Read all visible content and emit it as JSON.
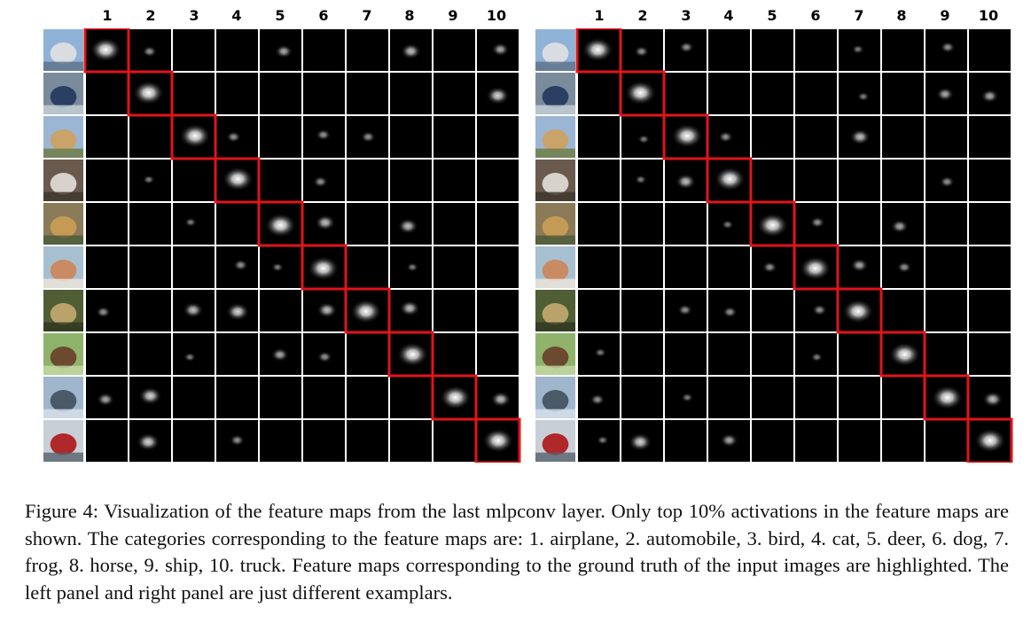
{
  "figure": {
    "column_numbers": [
      "1",
      "2",
      "3",
      "4",
      "5",
      "6",
      "7",
      "8",
      "9",
      "10"
    ],
    "highlight_color": "#e0141b",
    "panels": [
      {
        "name": "left",
        "rows": [
          {
            "input": "airplane",
            "blobs": [
              [
                1,
                0,
                9
              ],
              [
                2,
                0,
                3
              ],
              [
                5,
                0,
                4
              ],
              [
                8,
                0,
                5
              ],
              [
                10,
                0,
                4
              ]
            ]
          },
          {
            "input": "automobile",
            "blobs": [
              [
                2,
                0,
                9
              ],
              [
                10,
                0,
                6
              ]
            ]
          },
          {
            "input": "bird",
            "blobs": [
              [
                3,
                0,
                9
              ],
              [
                4,
                0,
                3
              ],
              [
                6,
                0,
                3
              ],
              [
                7,
                0,
                3
              ]
            ]
          },
          {
            "input": "cat",
            "blobs": [
              [
                4,
                0,
                9
              ],
              [
                2,
                0,
                2
              ],
              [
                6,
                0,
                3
              ]
            ]
          },
          {
            "input": "deer",
            "blobs": [
              [
                5,
                0,
                9
              ],
              [
                6,
                0,
                5
              ],
              [
                8,
                0,
                5
              ],
              [
                3,
                0,
                2
              ]
            ]
          },
          {
            "input": "dog",
            "blobs": [
              [
                6,
                0,
                9
              ],
              [
                4,
                0,
                3
              ],
              [
                5,
                0,
                2
              ],
              [
                8,
                0,
                2
              ]
            ]
          },
          {
            "input": "frog",
            "blobs": [
              [
                7,
                0,
                9
              ],
              [
                3,
                0,
                5
              ],
              [
                4,
                0,
                6
              ],
              [
                6,
                0,
                5
              ],
              [
                8,
                0,
                5
              ],
              [
                1,
                0,
                3
              ]
            ]
          },
          {
            "input": "horse",
            "blobs": [
              [
                8,
                0,
                9
              ],
              [
                5,
                0,
                4
              ],
              [
                6,
                0,
                3
              ],
              [
                3,
                0,
                2
              ]
            ]
          },
          {
            "input": "ship",
            "blobs": [
              [
                9,
                0,
                9
              ],
              [
                1,
                0,
                4
              ],
              [
                2,
                0,
                6
              ],
              [
                10,
                0,
                5
              ]
            ]
          },
          {
            "input": "truck",
            "blobs": [
              [
                10,
                0,
                9
              ],
              [
                2,
                0,
                6
              ],
              [
                4,
                0,
                3
              ]
            ]
          }
        ]
      },
      {
        "name": "right",
        "rows": [
          {
            "input": "airplane",
            "blobs": [
              [
                1,
                0,
                9
              ],
              [
                2,
                0,
                3
              ],
              [
                3,
                0,
                3
              ],
              [
                7,
                0,
                2
              ],
              [
                9,
                0,
                3
              ]
            ]
          },
          {
            "input": "automobile",
            "blobs": [
              [
                2,
                0,
                9
              ],
              [
                9,
                0,
                4
              ],
              [
                10,
                0,
                4
              ],
              [
                7,
                0,
                2
              ]
            ]
          },
          {
            "input": "bird",
            "blobs": [
              [
                3,
                0,
                9
              ],
              [
                4,
                0,
                3
              ],
              [
                7,
                0,
                5
              ],
              [
                2,
                0,
                2
              ]
            ]
          },
          {
            "input": "cat",
            "blobs": [
              [
                4,
                0,
                9
              ],
              [
                3,
                0,
                5
              ],
              [
                2,
                0,
                2
              ],
              [
                9,
                0,
                3
              ]
            ]
          },
          {
            "input": "deer",
            "blobs": [
              [
                5,
                0,
                9
              ],
              [
                6,
                0,
                3
              ],
              [
                8,
                0,
                4
              ],
              [
                4,
                0,
                2
              ]
            ]
          },
          {
            "input": "dog",
            "blobs": [
              [
                6,
                0,
                9
              ],
              [
                5,
                0,
                3
              ],
              [
                7,
                0,
                4
              ],
              [
                8,
                0,
                3
              ]
            ]
          },
          {
            "input": "frog",
            "blobs": [
              [
                7,
                0,
                9
              ],
              [
                3,
                0,
                3
              ],
              [
                4,
                0,
                3
              ],
              [
                6,
                0,
                3
              ]
            ]
          },
          {
            "input": "horse",
            "blobs": [
              [
                8,
                0,
                9
              ],
              [
                1,
                0,
                2
              ],
              [
                6,
                0,
                2
              ]
            ]
          },
          {
            "input": "ship",
            "blobs": [
              [
                9,
                0,
                9
              ],
              [
                10,
                0,
                5
              ],
              [
                1,
                0,
                3
              ],
              [
                3,
                0,
                2
              ]
            ]
          },
          {
            "input": "truck",
            "blobs": [
              [
                10,
                0,
                9
              ],
              [
                2,
                0,
                6
              ],
              [
                4,
                0,
                4
              ],
              [
                1,
                0,
                2
              ]
            ]
          }
        ]
      }
    ]
  },
  "caption": "Figure 4: Visualization of the feature maps from the last mlpconv layer. Only top 10% activations in the feature maps are shown. The categories corresponding to the feature maps are: 1. airplane, 2. automobile, 3. bird, 4. cat, 5. deer, 6. dog, 7. frog, 8. horse, 9. ship, 10. truck. Feature maps corresponding to the ground truth of the input images are highlighted. The left panel and right panel are just different examplars."
}
